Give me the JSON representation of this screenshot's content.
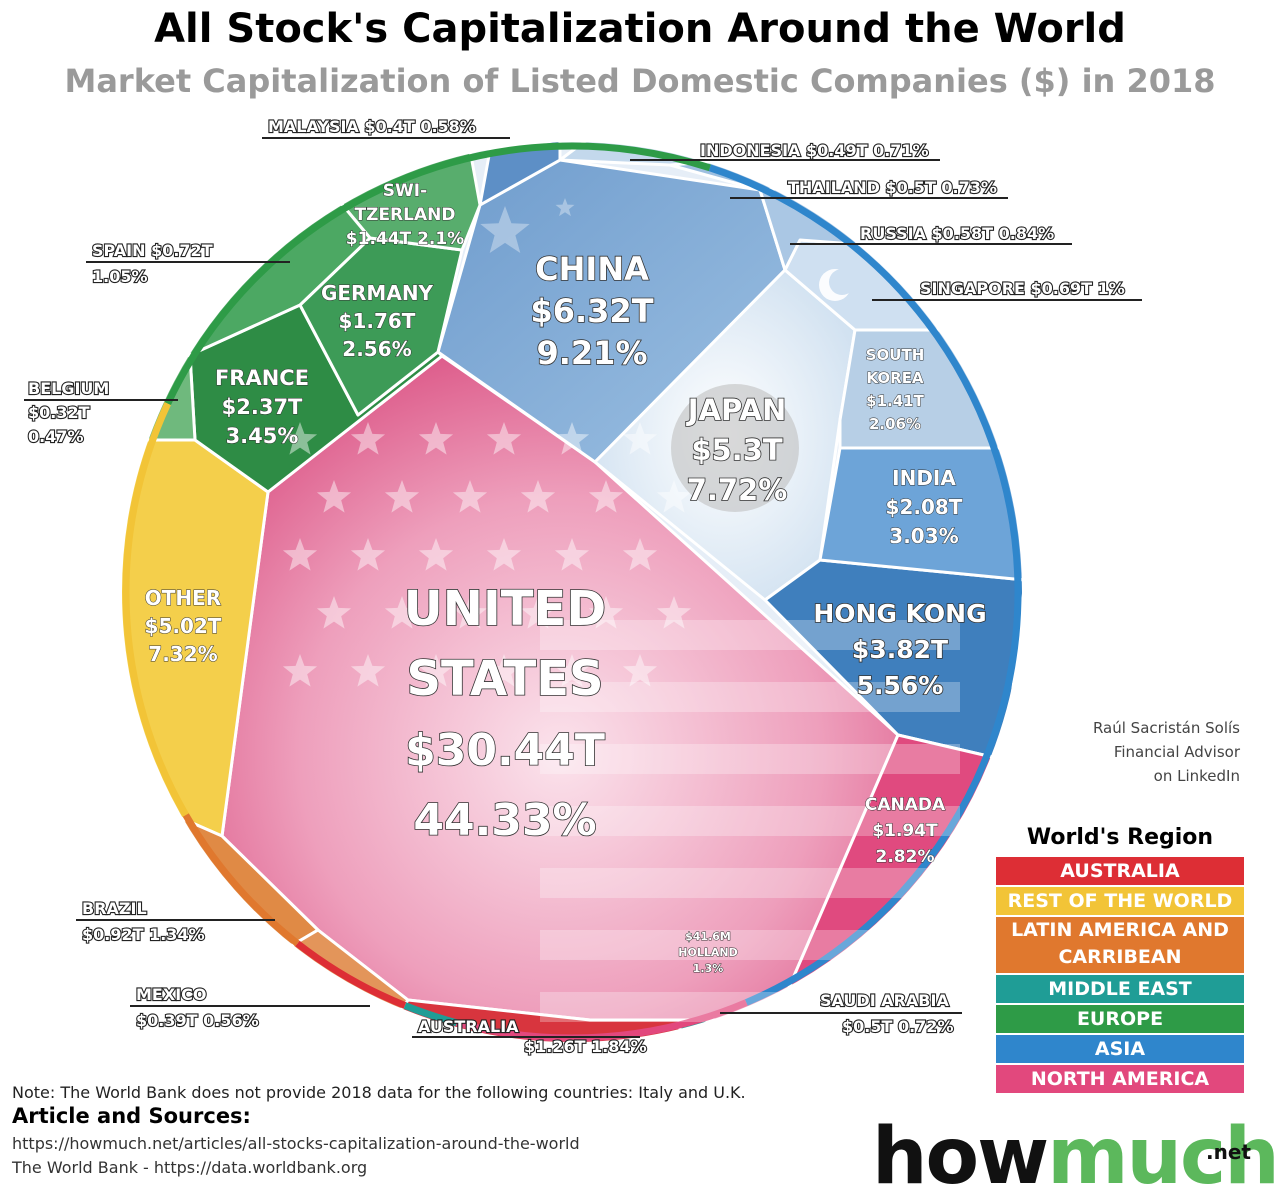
{
  "title": "All Stock's Capitalization Around the World",
  "subtitle": "Market Capitalization of Listed Domestic Companies ($) in 2018",
  "credit": [
    "Raúl Sacristán Solís",
    "Financial Advisor",
    "on LinkedIn"
  ],
  "legend": {
    "title": "World's Region",
    "items": [
      {
        "label": "AUSTRALIA",
        "color": "#dd2e35"
      },
      {
        "label": "REST OF THE WORLD",
        "color": "#f2c437"
      },
      {
        "label": "LATIN AMERICA AND CARRIBEAN",
        "color": "#e0782e"
      },
      {
        "label": "MIDDLE EAST",
        "color": "#1f9d96"
      },
      {
        "label": "EUROPE",
        "color": "#2e9b47"
      },
      {
        "label": "ASIA",
        "color": "#2f86cc"
      },
      {
        "label": "NORTH AMERICA",
        "color": "#e2487d"
      }
    ]
  },
  "note": "Note: The World Bank does not provide 2018 data for the following countries: Italy and U.K.",
  "sources": {
    "title": "Article and Sources:",
    "lines": [
      "https://howmuch.net/articles/all-stocks-capitalization-around-the-world",
      "The World Bank - https://data.worldbank.org"
    ]
  },
  "brand": {
    "how": "how",
    "much": "much",
    "net": ".net"
  },
  "chart_data": {
    "type": "voronoi-treemap",
    "title": "All Stock's Capitalization Around the World",
    "subtitle": "Market Capitalization of Listed Domestic Companies ($) in 2018",
    "series": [
      {
        "name": "United States",
        "region": "North America",
        "value_T": 30.44,
        "share_pct": 44.33,
        "label_lines": [
          "UNITED",
          "STATES",
          "$30.44T",
          "44.33%"
        ]
      },
      {
        "name": "China",
        "region": "Asia",
        "value_T": 6.32,
        "share_pct": 9.21,
        "label_lines": [
          "CHINA",
          "$6.32T",
          "9.21%"
        ]
      },
      {
        "name": "Japan",
        "region": "Asia",
        "value_T": 5.3,
        "share_pct": 7.72,
        "label_lines": [
          "JAPAN",
          "$5.3T",
          "7.72%"
        ]
      },
      {
        "name": "Other",
        "region": "Rest of the World",
        "value_T": 5.02,
        "share_pct": 7.32,
        "label_lines": [
          "OTHER",
          "$5.02T",
          "7.32%"
        ]
      },
      {
        "name": "Hong Kong",
        "region": "Asia",
        "value_T": 3.82,
        "share_pct": 5.56,
        "label_lines": [
          "HONG KONG",
          "$3.82T",
          "5.56%"
        ]
      },
      {
        "name": "France",
        "region": "Europe",
        "value_T": 2.37,
        "share_pct": 3.45,
        "label_lines": [
          "FRANCE",
          "$2.37T",
          "3.45%"
        ]
      },
      {
        "name": "India",
        "region": "Asia",
        "value_T": 2.08,
        "share_pct": 3.03,
        "label_lines": [
          "INDIA",
          "$2.08T",
          "3.03%"
        ]
      },
      {
        "name": "Canada",
        "region": "North America",
        "value_T": 1.94,
        "share_pct": 2.82,
        "label_lines": [
          "CANADA",
          "$1.94T",
          "2.82%"
        ]
      },
      {
        "name": "Germany",
        "region": "Europe",
        "value_T": 1.76,
        "share_pct": 2.56,
        "label_lines": [
          "GERMANY",
          "$1.76T",
          "2.56%"
        ]
      },
      {
        "name": "Switzerland",
        "region": "Europe",
        "value_T": 1.44,
        "share_pct": 2.1,
        "label_lines": [
          "SWI-",
          "TZERLAND",
          "$1.44T  2.1%"
        ]
      },
      {
        "name": "South Korea",
        "region": "Asia",
        "value_T": 1.41,
        "share_pct": 2.06,
        "label_lines": [
          "SOUTH",
          "KOREA",
          "$1.41T",
          "2.06%"
        ]
      },
      {
        "name": "Australia",
        "region": "Australia",
        "value_T": 1.26,
        "share_pct": 1.84,
        "label_lines": [
          "AUSTRALIA",
          "$1.26T  1.84%"
        ]
      },
      {
        "name": "Brazil",
        "region": "Latin America and Carribean",
        "value_T": 0.92,
        "share_pct": 1.34,
        "label_lines": [
          "BRAZIL",
          "$0.92T  1.34%"
        ]
      },
      {
        "name": "Spain",
        "region": "Europe",
        "value_T": 0.72,
        "share_pct": 1.05,
        "label_lines": [
          "SPAIN   $0.72T",
          "1.05%"
        ]
      },
      {
        "name": "Singapore",
        "region": "Asia",
        "value_T": 0.69,
        "share_pct": 1,
        "label_lines": [
          "SINGAPORE   $0.69T  1%"
        ]
      },
      {
        "name": "Russia",
        "region": "Asia",
        "value_T": 0.58,
        "share_pct": 0.84,
        "label_lines": [
          "RUSSIA $0.58T  0.84%"
        ]
      },
      {
        "name": "Thailand",
        "region": "Asia",
        "value_T": 0.5,
        "share_pct": 0.73,
        "label_lines": [
          "THAILAND $0.5T  0.73%"
        ]
      },
      {
        "name": "Saudi Arabia",
        "region": "Middle East",
        "value_T": 0.5,
        "share_pct": 0.72,
        "label_lines": [
          "SAUDI ARABIA",
          "$0.5T  0.72%"
        ]
      },
      {
        "name": "Indonesia",
        "region": "Asia",
        "value_T": 0.49,
        "share_pct": 0.71,
        "label_lines": [
          "INDONESIA $0.49T  0.71%"
        ]
      },
      {
        "name": "Malaysia",
        "region": "Asia",
        "value_T": 0.4,
        "share_pct": 0.58,
        "label_lines": [
          "MALAYSIA $0.4T  0.58%"
        ]
      },
      {
        "name": "Mexico",
        "region": "Latin America and Carribean",
        "value_T": 0.39,
        "share_pct": 0.56,
        "label_lines": [
          "MEXICO",
          "$0.39T  0.56%"
        ]
      },
      {
        "name": "Belgium",
        "region": "Europe",
        "value_T": 0.32,
        "share_pct": 0.47,
        "label_lines": [
          "BELGIUM",
          "$0.32T",
          "0.47%"
        ]
      },
      {
        "name": "Holland",
        "region": "Europe",
        "value_T": 0.0416,
        "share_pct": 1.3,
        "label_lines": [
          "$41.6M",
          "HOLLAND",
          "1.3%"
        ]
      }
    ]
  }
}
